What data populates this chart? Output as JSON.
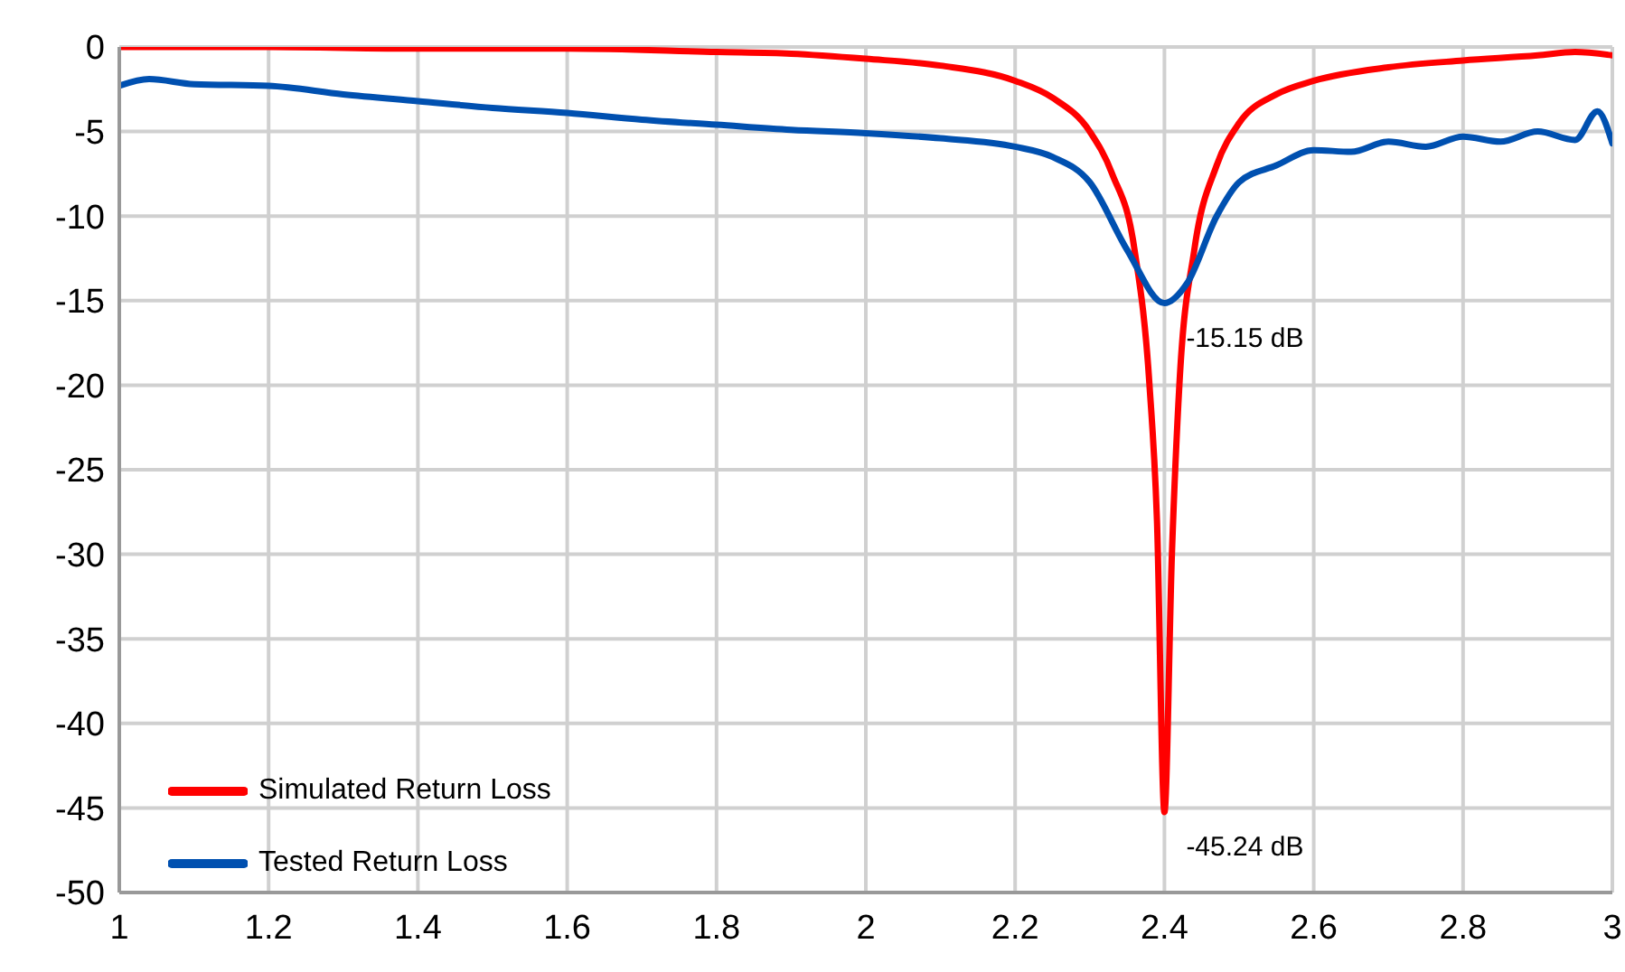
{
  "chart_data": {
    "type": "line",
    "xlim": [
      1,
      3
    ],
    "xticks": [
      1,
      1.2,
      1.4,
      1.6,
      1.8,
      2,
      2.2,
      2.4,
      2.6,
      2.8,
      3
    ],
    "ylim": [
      -50,
      0
    ],
    "yticks": [
      -50,
      -45,
      -40,
      -35,
      -30,
      -25,
      -20,
      -15,
      -10,
      -5,
      0
    ],
    "grid": true,
    "legend": "bottom left",
    "marker": "none",
    "line_style": "solid",
    "annotations": [
      {
        "text": "-15.15 dB",
        "x": 2.4,
        "y": -15.15
      },
      {
        "text": "-45.24 dB",
        "x": 2.4,
        "y": -45.24
      }
    ],
    "series": [
      {
        "name": "Simulated Return Loss",
        "color": "#ff0000",
        "x": [
          1,
          1.2,
          1.4,
          1.6,
          1.8,
          1.9,
          2,
          2.1,
          2.2,
          2.25,
          2.3,
          2.33,
          2.36,
          2.38,
          2.39,
          2.4,
          2.41,
          2.42,
          2.44,
          2.47,
          2.5,
          2.55,
          2.6,
          2.7,
          2.8,
          2.9,
          2.95,
          3
        ],
        "values": [
          0,
          0,
          -0.1,
          -0.1,
          -0.3,
          -0.4,
          -0.7,
          -1.1,
          -2,
          -3,
          -5,
          -7.5,
          -12,
          -20,
          -28,
          -45.24,
          -30,
          -20,
          -12,
          -7,
          -4.5,
          -2.8,
          -2,
          -1.2,
          -0.8,
          -0.5,
          -0.3,
          -0.5
        ]
      },
      {
        "name": "Tested Return Loss",
        "color": "#0050b0",
        "x": [
          1,
          1.04,
          1.1,
          1.2,
          1.3,
          1.4,
          1.5,
          1.6,
          1.7,
          1.8,
          1.9,
          2,
          2.1,
          2.2,
          2.25,
          2.3,
          2.35,
          2.4,
          2.43,
          2.47,
          2.5,
          2.55,
          2.6,
          2.65,
          2.7,
          2.75,
          2.8,
          2.85,
          2.9,
          2.95,
          2.98,
          3
        ],
        "values": [
          -2.3,
          -1.9,
          -2.2,
          -2.3,
          -2.8,
          -3.2,
          -3.6,
          -3.9,
          -4.3,
          -4.6,
          -4.9,
          -5.1,
          -5.4,
          -5.9,
          -6.5,
          -8,
          -12,
          -15.15,
          -14,
          -10,
          -8,
          -7,
          -6.1,
          -6.2,
          -5.6,
          -5.9,
          -5.3,
          -5.6,
          -5,
          -5.5,
          -3.8,
          -5.7
        ]
      }
    ]
  }
}
